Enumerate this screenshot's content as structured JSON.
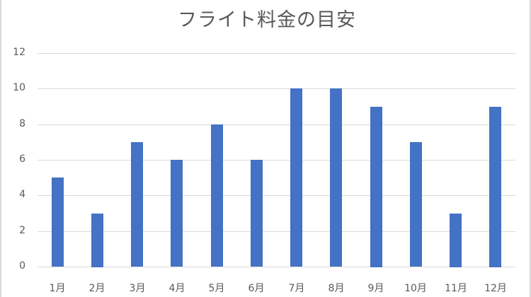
{
  "chart_data": {
    "type": "bar",
    "title": "フライト料金の目安",
    "categories": [
      "1月",
      "2月",
      "3月",
      "4月",
      "5月",
      "6月",
      "7月",
      "8月",
      "9月",
      "10月",
      "11月",
      "12月"
    ],
    "values": [
      5,
      3,
      7,
      6,
      8,
      6,
      10,
      10,
      9,
      7,
      3,
      9
    ],
    "xlabel": "",
    "ylabel": "",
    "ylim": [
      0,
      12
    ],
    "yticks": [
      0,
      2,
      4,
      6,
      8,
      10,
      12
    ],
    "grid": true,
    "legend": null,
    "bar_color": "#4472C4"
  }
}
